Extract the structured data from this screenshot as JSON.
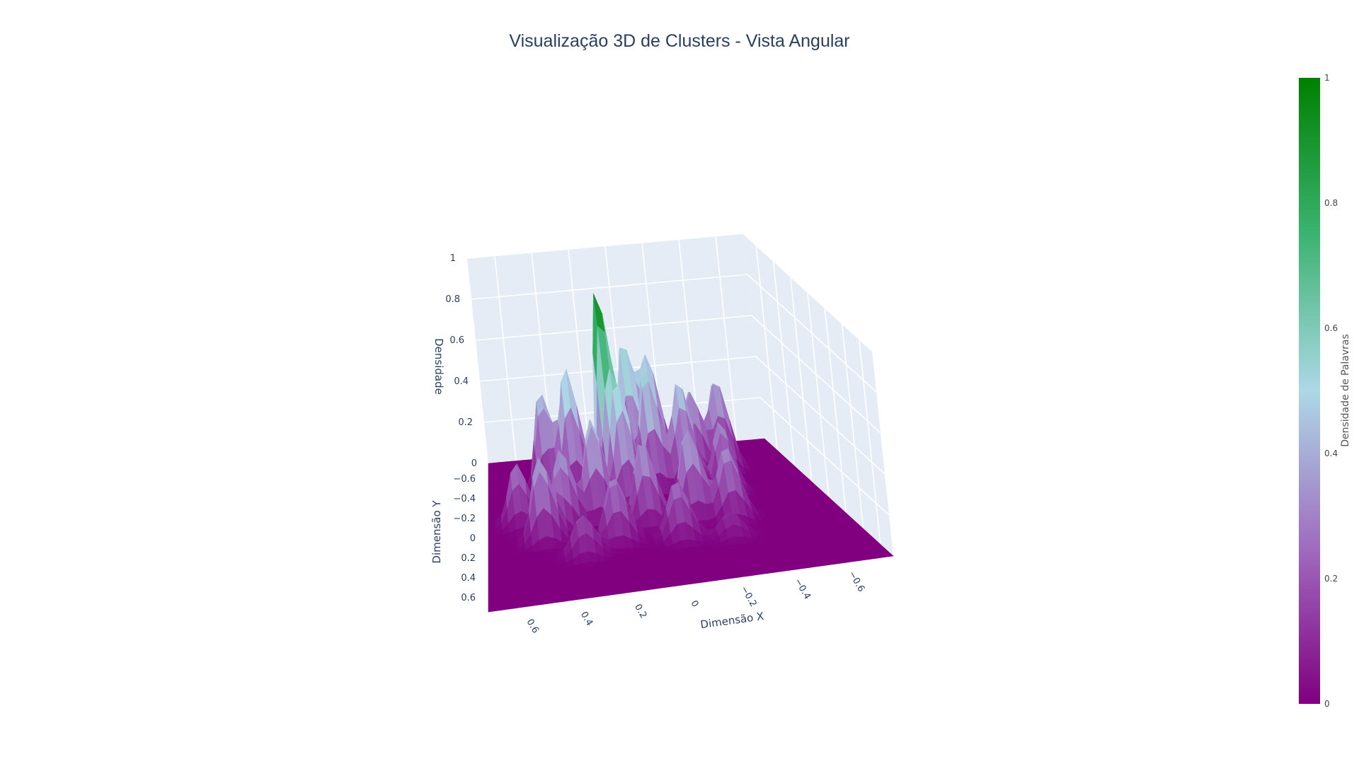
{
  "chart_data": {
    "type": "surface",
    "title": "Visualização 3D de Clusters - Vista Angular",
    "xlabel": "Dimensão X",
    "ylabel": "Dimensão Y",
    "zlabel": "Densidade",
    "colorbar_title": "Densidade de Palavras",
    "x_ticks": [
      "0.6",
      "0.4",
      "0.2",
      "0",
      "−0.2",
      "−0.4",
      "−0.6"
    ],
    "y_ticks": [
      "−0.6",
      "−0.4",
      "−0.2",
      "0",
      "0.2",
      "0.4",
      "0.6"
    ],
    "z_ticks": [
      "0",
      "0.2",
      "0.4",
      "0.6",
      "0.8",
      "1"
    ],
    "colorbar_ticks": [
      "0",
      "0.2",
      "0.4",
      "0.6",
      "0.8",
      "1"
    ],
    "xlim": [
      -0.75,
      0.75
    ],
    "ylim": [
      -0.75,
      0.75
    ],
    "zlim": [
      0,
      1
    ],
    "colorscale": [
      "#800080",
      "#9f6cbf",
      "#add8e6",
      "#3cb371",
      "#008000"
    ],
    "peaks": [
      {
        "x": 0.15,
        "y": -0.25,
        "z": 1.0
      },
      {
        "x": 0.02,
        "y": -0.45,
        "z": 0.68
      },
      {
        "x": -0.1,
        "y": -0.48,
        "z": 0.58
      },
      {
        "x": 0.32,
        "y": -0.35,
        "z": 0.62
      },
      {
        "x": 0.45,
        "y": -0.4,
        "z": 0.48
      },
      {
        "x": -0.05,
        "y": -0.3,
        "z": 0.6
      },
      {
        "x": 0.1,
        "y": -0.15,
        "z": 0.55
      },
      {
        "x": -0.2,
        "y": -0.28,
        "z": 0.52
      },
      {
        "x": -0.28,
        "y": -0.42,
        "z": 0.42
      },
      {
        "x": -0.42,
        "y": -0.45,
        "z": 0.45
      },
      {
        "x": -0.35,
        "y": -0.18,
        "z": 0.35
      },
      {
        "x": 0.25,
        "y": -0.05,
        "z": 0.5
      },
      {
        "x": 0.4,
        "y": 0.0,
        "z": 0.38
      },
      {
        "x": 0.5,
        "y": 0.1,
        "z": 0.4
      },
      {
        "x": 0.05,
        "y": 0.05,
        "z": 0.42
      },
      {
        "x": -0.15,
        "y": 0.05,
        "z": 0.45
      },
      {
        "x": -0.3,
        "y": 0.1,
        "z": 0.35
      },
      {
        "x": 0.6,
        "y": -0.1,
        "z": 0.3
      },
      {
        "x": 0.2,
        "y": 0.2,
        "z": 0.32
      },
      {
        "x": -0.05,
        "y": 0.25,
        "z": 0.28
      },
      {
        "x": 0.35,
        "y": 0.3,
        "z": 0.2
      },
      {
        "x": -0.25,
        "y": 0.3,
        "z": 0.12
      }
    ]
  }
}
